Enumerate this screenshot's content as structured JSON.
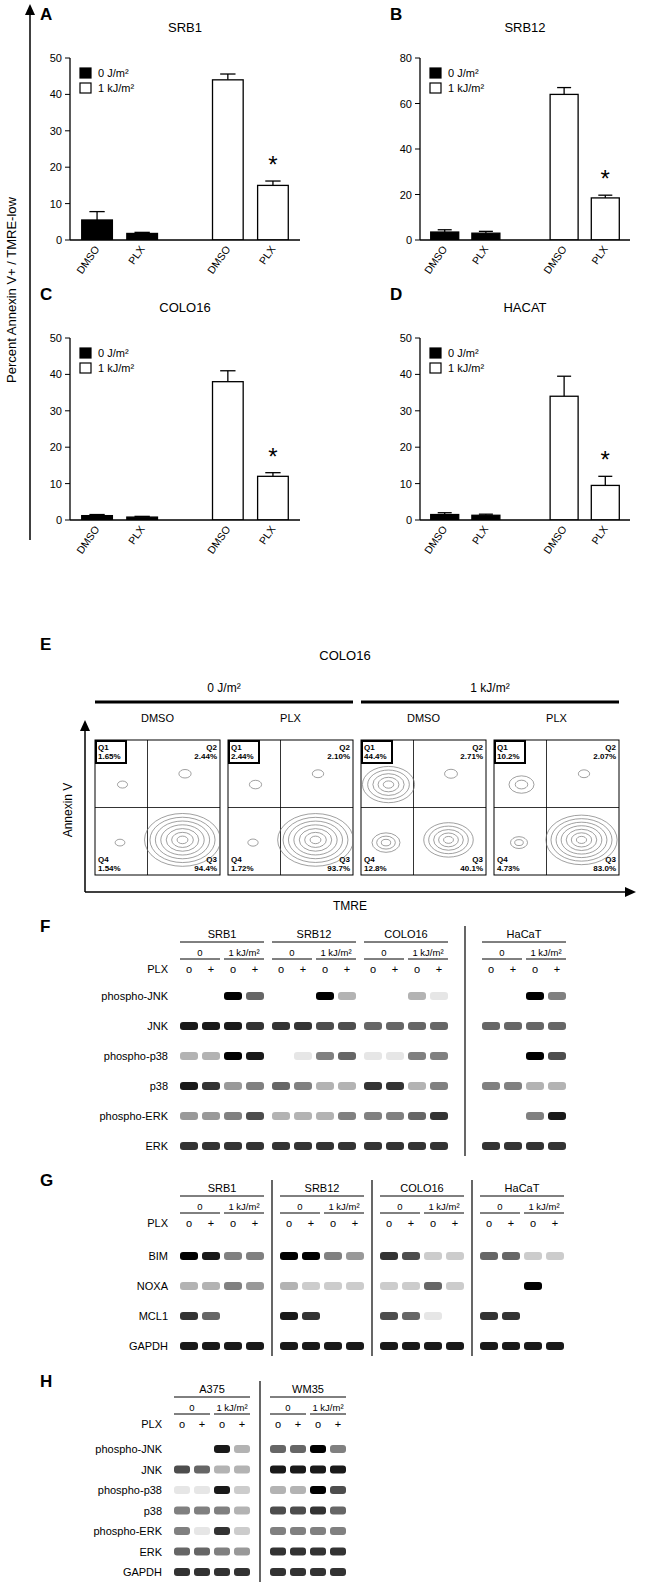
{
  "shared_y_label": "Percent Annexin V+ / TMRE-low",
  "chart_data": [
    {
      "type": "bar",
      "panel": "A",
      "title": "SRB1",
      "categories": [
        "DMSO",
        "PLX",
        "DMSO",
        "PLX"
      ],
      "series": [
        {
          "name": "0 J/m²",
          "color": "#000000",
          "values": [
            5.5,
            1.8,
            null,
            null
          ],
          "errors": [
            2.3,
            0.3,
            null,
            null
          ]
        },
        {
          "name": "1 kJ/m²",
          "color": "#ffffff",
          "values": [
            null,
            null,
            44,
            15
          ],
          "errors": [
            null,
            null,
            1.6,
            1.2
          ]
        }
      ],
      "ylim": [
        0,
        50
      ],
      "yticks": [
        0,
        10,
        20,
        30,
        40,
        50
      ],
      "legend": "upper left",
      "annotations": [
        {
          "text": "*",
          "series": 1,
          "index": 3
        }
      ]
    },
    {
      "type": "bar",
      "panel": "B",
      "title": "SRB12",
      "categories": [
        "DMSO",
        "PLX",
        "DMSO",
        "PLX"
      ],
      "series": [
        {
          "name": "0 J/m²",
          "color": "#000000",
          "values": [
            3.5,
            3,
            null,
            null
          ],
          "errors": [
            1,
            0.8,
            null,
            null
          ]
        },
        {
          "name": "1 kJ/m²",
          "color": "#ffffff",
          "values": [
            null,
            null,
            64,
            18.5
          ],
          "errors": [
            null,
            null,
            3,
            1.2
          ]
        }
      ],
      "ylim": [
        0,
        80
      ],
      "yticks": [
        0,
        20,
        40,
        60,
        80
      ],
      "legend": "upper left",
      "annotations": [
        {
          "text": "*",
          "series": 1,
          "index": 3
        }
      ]
    },
    {
      "type": "bar",
      "panel": "C",
      "title": "COLO16",
      "categories": [
        "DMSO",
        "PLX",
        "DMSO",
        "PLX"
      ],
      "series": [
        {
          "name": "0 J/m²",
          "color": "#000000",
          "values": [
            1.2,
            0.8,
            null,
            null
          ],
          "errors": [
            0.3,
            0.2,
            null,
            null
          ]
        },
        {
          "name": "1 kJ/m²",
          "color": "#ffffff",
          "values": [
            null,
            null,
            38,
            12
          ],
          "errors": [
            null,
            null,
            3,
            1
          ]
        }
      ],
      "ylim": [
        0,
        50
      ],
      "yticks": [
        0,
        10,
        20,
        30,
        40,
        50
      ],
      "legend": "upper left",
      "annotations": [
        {
          "text": "*",
          "series": 1,
          "index": 3
        }
      ]
    },
    {
      "type": "bar",
      "panel": "D",
      "title": "HACAT",
      "categories": [
        "DMSO",
        "PLX",
        "DMSO",
        "PLX"
      ],
      "series": [
        {
          "name": "0 J/m²",
          "color": "#000000",
          "values": [
            1.5,
            1.3,
            null,
            null
          ],
          "errors": [
            0.5,
            0.3,
            null,
            null
          ]
        },
        {
          "name": "1 kJ/m²",
          "color": "#ffffff",
          "values": [
            null,
            null,
            34,
            9.5
          ],
          "errors": [
            null,
            null,
            5.5,
            2.5
          ]
        }
      ],
      "ylim": [
        0,
        50
      ],
      "yticks": [
        0,
        10,
        20,
        30,
        40,
        50
      ],
      "legend": "upper left",
      "annotations": [
        {
          "text": "*",
          "series": 1,
          "index": 3
        }
      ]
    }
  ],
  "flow_cytometry": {
    "panel": "E",
    "title": "COLO16",
    "x_label": "TMRE",
    "y_label": "Annexin V",
    "quadrant_names": [
      "Q1",
      "Q2",
      "Q3",
      "Q4"
    ],
    "groups": [
      {
        "label": "0 J/m²",
        "plots": [
          {
            "label": "DMSO",
            "values": [
              1.65,
              2.44,
              94.4,
              1.54
            ],
            "value_labels": [
              "1.65%",
              "2.44%",
              "94.4%",
              "1.54%"
            ]
          },
          {
            "label": "PLX",
            "values": [
              2.44,
              2.1,
              93.7,
              1.72
            ],
            "value_labels": [
              "2.44%",
              "2.10%",
              "93.7%",
              "1.72%"
            ]
          }
        ]
      },
      {
        "label": "1 kJ/m²",
        "plots": [
          {
            "label": "DMSO",
            "values": [
              44.4,
              2.71,
              40.1,
              12.8
            ],
            "value_labels": [
              "44.4%",
              "2.71%",
              "40.1%",
              "12.8%"
            ]
          },
          {
            "label": "PLX",
            "values": [
              10.2,
              2.07,
              83.0,
              4.73
            ],
            "value_labels": [
              "10.2%",
              "2.07%",
              "83.0%",
              "4.73%"
            ]
          }
        ]
      }
    ]
  },
  "blots": [
    {
      "panel": "F",
      "rows": [
        "phospho-JNK",
        "JNK",
        "phospho-p38",
        "p38",
        "phospho-ERK",
        "ERK"
      ],
      "dose_labels": [
        "0",
        "1 kJ/m²"
      ],
      "treatment_label": "PLX",
      "lane_symbols": [
        "o",
        "+",
        "o",
        "+"
      ],
      "blocks": [
        {
          "groups": [
            {
              "name": "SRB1",
              "bands": [
                [
                  0,
                  0,
                  1,
                  0.6
                ],
                [
                  0.9,
                  0.9,
                  0.9,
                  0.8
                ],
                [
                  0.3,
                  0.3,
                  1,
                  0.9
                ],
                [
                  0.9,
                  0.8,
                  0.4,
                  0.5
                ],
                [
                  0.4,
                  0.4,
                  0.5,
                  0.7
                ],
                [
                  0.8,
                  0.8,
                  0.8,
                  0.8
                ]
              ]
            },
            {
              "name": "SRB12",
              "bands": [
                [
                  0,
                  0,
                  1,
                  0.3
                ],
                [
                  0.8,
                  0.8,
                  0.7,
                  0.7
                ],
                [
                  0,
                  0.1,
                  0.5,
                  0.6
                ],
                [
                  0.6,
                  0.5,
                  0.3,
                  0.3
                ],
                [
                  0.3,
                  0.3,
                  0.3,
                  0.5
                ],
                [
                  0.8,
                  0.8,
                  0.8,
                  0.8
                ]
              ]
            },
            {
              "name": "COLO16",
              "bands": [
                [
                  0,
                  0,
                  0.3,
                  0.1
                ],
                [
                  0.6,
                  0.6,
                  0.6,
                  0.6
                ],
                [
                  0.1,
                  0.1,
                  0.5,
                  0.5
                ],
                [
                  0.8,
                  0.8,
                  0.3,
                  0.5
                ],
                [
                  0.5,
                  0.5,
                  0.6,
                  0.8
                ],
                [
                  0.8,
                  0.8,
                  0.8,
                  0.8
                ]
              ]
            }
          ]
        },
        {
          "groups": [
            {
              "name": "HaCaT",
              "bands": [
                [
                  0,
                  0,
                  1,
                  0.5
                ],
                [
                  0.6,
                  0.6,
                  0.6,
                  0.6
                ],
                [
                  0,
                  0,
                  1,
                  0.7
                ],
                [
                  0.5,
                  0.5,
                  0.3,
                  0.3
                ],
                [
                  0,
                  0,
                  0.5,
                  0.9
                ],
                [
                  0.8,
                  0.8,
                  0.8,
                  0.8
                ]
              ]
            }
          ]
        }
      ]
    },
    {
      "panel": "G",
      "rows": [
        "BIM",
        "NOXA",
        "MCL1",
        "GAPDH"
      ],
      "dose_labels": [
        "0",
        "1 kJ/m²"
      ],
      "treatment_label": "PLX",
      "lane_symbols": [
        "o",
        "+",
        "o",
        "+"
      ],
      "blocks": [
        {
          "groups": [
            {
              "name": "SRB1",
              "bands": [
                [
                  1,
                  0.9,
                  0.5,
                  0.5
                ],
                [
                  0.3,
                  0.3,
                  0.5,
                  0.4
                ],
                [
                  0.8,
                  0.6,
                  0,
                  0
                ],
                [
                  0.9,
                  0.9,
                  0.9,
                  0.9
                ]
              ]
            }
          ]
        },
        {
          "groups": [
            {
              "name": "SRB12",
              "bands": [
                [
                  1,
                  1,
                  0.5,
                  0.4
                ],
                [
                  0.3,
                  0.2,
                  0.2,
                  0.2
                ],
                [
                  0.9,
                  0.8,
                  0,
                  0
                ],
                [
                  0.9,
                  0.9,
                  0.9,
                  0.9
                ]
              ]
            }
          ]
        },
        {
          "groups": [
            {
              "name": "COLO16",
              "bands": [
                [
                  0.8,
                  0.7,
                  0.2,
                  0.2
                ],
                [
                  0.2,
                  0.2,
                  0.6,
                  0.2
                ],
                [
                  0.7,
                  0.6,
                  0.1,
                  0
                ],
                [
                  0.9,
                  0.9,
                  0.9,
                  0.9
                ]
              ]
            }
          ]
        },
        {
          "groups": [
            {
              "name": "HaCaT",
              "bands": [
                [
                  0.6,
                  0.6,
                  0.2,
                  0.2
                ],
                [
                  0,
                  0,
                  1,
                  0
                ],
                [
                  0.8,
                  0.8,
                  0,
                  0
                ],
                [
                  0.9,
                  0.9,
                  0.9,
                  0.9
                ]
              ]
            }
          ]
        }
      ]
    },
    {
      "panel": "H",
      "rows": [
        "phospho-JNK",
        "JNK",
        "phospho-p38",
        "p38",
        "phospho-ERK",
        "ERK",
        "GAPDH"
      ],
      "dose_labels": [
        "0",
        "1 kJ/m²"
      ],
      "treatment_label": "PLX",
      "lane_symbols": [
        "o",
        "+",
        "o",
        "+"
      ],
      "blocks": [
        {
          "groups": [
            {
              "name": "A375",
              "bands": [
                [
                  0,
                  0,
                  0.9,
                  0.3
                ],
                [
                  0.7,
                  0.6,
                  0.3,
                  0.3
                ],
                [
                  0.1,
                  0.1,
                  0.9,
                  0.2
                ],
                [
                  0.5,
                  0.5,
                  0.5,
                  0.3
                ],
                [
                  0.5,
                  0.1,
                  0.8,
                  0.2
                ],
                [
                  0.6,
                  0.6,
                  0.5,
                  0.4
                ],
                [
                  0.8,
                  0.8,
                  0.8,
                  0.8
                ]
              ]
            }
          ]
        },
        {
          "groups": [
            {
              "name": "WM35",
              "bands": [
                [
                  0.6,
                  0.6,
                  1,
                  0.5
                ],
                [
                  0.9,
                  0.9,
                  0.9,
                  0.9
                ],
                [
                  0.3,
                  0.3,
                  1,
                  0.7
                ],
                [
                  0.7,
                  0.7,
                  0.8,
                  0.6
                ],
                [
                  0.5,
                  0.5,
                  0.5,
                  0.5
                ],
                [
                  0.8,
                  0.8,
                  0.8,
                  0.8
                ],
                [
                  0.8,
                  0.8,
                  0.8,
                  0.8
                ]
              ]
            }
          ]
        }
      ]
    }
  ]
}
